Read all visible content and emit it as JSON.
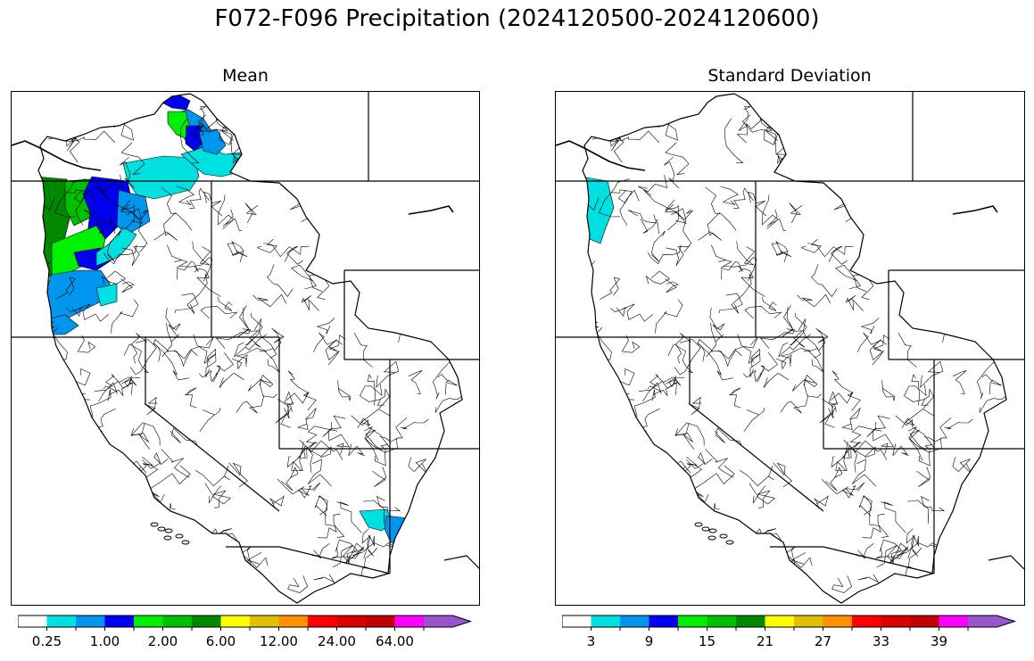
{
  "figure": {
    "title": "F072-F096 Precipitation (2024120500-2024120600)"
  },
  "panels": [
    {
      "id": "mean",
      "title": "Mean",
      "colorbar": {
        "colors": [
          "#ffffff",
          "#00e0e0",
          "#0096f0",
          "#0000f0",
          "#00f000",
          "#00c000",
          "#008800",
          "#ffff00",
          "#e0c000",
          "#ff9000",
          "#ff0000",
          "#d80000",
          "#c00000",
          "#ff00ff",
          "#9955cc"
        ],
        "extend": "max",
        "tick_labels": [
          "0.25",
          "1.00",
          "2.00",
          "6.00",
          "12.00",
          "24.00",
          "64.00"
        ]
      }
    },
    {
      "id": "stdev",
      "title": "Standard Deviation",
      "colorbar": {
        "colors": [
          "#ffffff",
          "#00e0e0",
          "#0096f0",
          "#0000f0",
          "#00f000",
          "#00c000",
          "#008800",
          "#ffff00",
          "#e0c000",
          "#ff9000",
          "#ff0000",
          "#d80000",
          "#c00000",
          "#ff00ff",
          "#9955cc"
        ],
        "extend": "max",
        "tick_labels": [
          "3",
          "9",
          "15",
          "21",
          "27",
          "33",
          "39"
        ]
      }
    }
  ]
}
